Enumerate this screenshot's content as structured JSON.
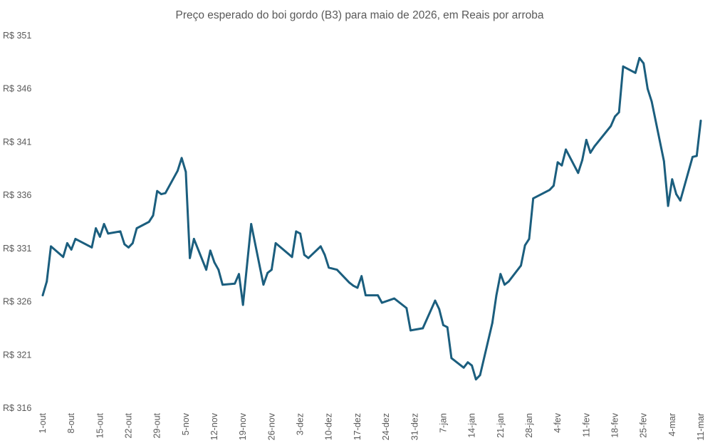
{
  "chart_data": {
    "type": "line",
    "title": "Preço esperado do boi gordo (B3) para maio de 2026, em Reais por arroba",
    "xlabel": "",
    "ylabel": "",
    "ylim": [
      316,
      351
    ],
    "xlim": [
      "2025-10-01",
      "2026-03-11"
    ],
    "grid": false,
    "line_color": "#1b5e7e",
    "y_ticks": [
      316,
      321,
      326,
      331,
      336,
      341,
      346,
      351
    ],
    "y_tick_labels": [
      "R$ 316",
      "R$ 321",
      "R$ 326",
      "R$ 331",
      "R$ 336",
      "R$ 341",
      "R$ 346",
      "R$ 351"
    ],
    "x_ticks": [
      "2025-10-01",
      "2025-10-08",
      "2025-10-15",
      "2025-10-22",
      "2025-10-29",
      "2025-11-05",
      "2025-11-12",
      "2025-11-19",
      "2025-11-26",
      "2025-12-03",
      "2025-12-10",
      "2025-12-17",
      "2025-12-24",
      "2025-12-31",
      "2026-01-07",
      "2026-01-14",
      "2026-01-21",
      "2026-01-28",
      "2026-02-04",
      "2026-02-11",
      "2026-02-18",
      "2026-02-25",
      "2026-03-04",
      "2026-03-11"
    ],
    "x_tick_labels": [
      "1-out",
      "8-out",
      "15-out",
      "22-out",
      "29-out",
      "5-nov",
      "12-nov",
      "19-nov",
      "26-nov",
      "3-dez",
      "10-dez",
      "17-dez",
      "24-dez",
      "31-dez",
      "7-jan",
      "14-jan",
      "21-jan",
      "28-jan",
      "4-fev",
      "11-fev",
      "18-fev",
      "25-fev",
      "4-mar",
      "11-mar"
    ],
    "series": [
      {
        "x": [
          "2025-10-01",
          "2025-10-02",
          "2025-10-03",
          "2025-10-06",
          "2025-10-07",
          "2025-10-08",
          "2025-10-09",
          "2025-10-13",
          "2025-10-14",
          "2025-10-15",
          "2025-10-16",
          "2025-10-17",
          "2025-10-20",
          "2025-10-21",
          "2025-10-22",
          "2025-10-23",
          "2025-10-24",
          "2025-10-27",
          "2025-10-28",
          "2025-10-29",
          "2025-10-30",
          "2025-10-31",
          "2025-11-03",
          "2025-11-04",
          "2025-11-05",
          "2025-11-06",
          "2025-11-07",
          "2025-11-10",
          "2025-11-11",
          "2025-11-12",
          "2025-11-13",
          "2025-11-14",
          "2025-11-17",
          "2025-11-18",
          "2025-11-19",
          "2025-11-21",
          "2025-11-24",
          "2025-11-25",
          "2025-11-26",
          "2025-11-27",
          "2025-12-01",
          "2025-12-02",
          "2025-12-03",
          "2025-12-04",
          "2025-12-05",
          "2025-12-08",
          "2025-12-09",
          "2025-12-10",
          "2025-12-12",
          "2025-12-15",
          "2025-12-16",
          "2025-12-17",
          "2025-12-18",
          "2025-12-19",
          "2025-12-22",
          "2025-12-23",
          "2025-12-26",
          "2025-12-29",
          "2025-12-30",
          "2026-01-02",
          "2026-01-05",
          "2026-01-06",
          "2026-01-07",
          "2026-01-08",
          "2026-01-09",
          "2026-01-12",
          "2026-01-13",
          "2026-01-14",
          "2026-01-15",
          "2026-01-16",
          "2026-01-19",
          "2026-01-20",
          "2026-01-21",
          "2026-01-22",
          "2026-01-23",
          "2026-01-26",
          "2026-01-27",
          "2026-01-28",
          "2026-01-29",
          "2026-02-02",
          "2026-02-03",
          "2026-02-04",
          "2026-02-05",
          "2026-02-06",
          "2026-02-09",
          "2026-02-10",
          "2026-02-11",
          "2026-02-12",
          "2026-02-13",
          "2026-02-17",
          "2026-02-18",
          "2026-02-19",
          "2026-02-20",
          "2026-02-23",
          "2026-02-24",
          "2026-02-25",
          "2026-02-26",
          "2026-02-27",
          "2026-03-02",
          "2026-03-03",
          "2026-03-04",
          "2026-03-05",
          "2026-03-06",
          "2026-03-09",
          "2026-03-10",
          "2026-03-11"
        ],
        "values": [
          326.6,
          327.9,
          331.2,
          330.2,
          331.5,
          330.9,
          331.9,
          331.1,
          332.9,
          332.1,
          333.3,
          332.4,
          332.6,
          331.4,
          331.1,
          331.5,
          332.9,
          333.5,
          334.1,
          336.4,
          336.1,
          336.2,
          338.3,
          339.5,
          338.2,
          330.1,
          331.9,
          329.0,
          330.8,
          329.7,
          329.0,
          327.6,
          327.7,
          328.6,
          325.7,
          333.3,
          327.6,
          328.7,
          329.0,
          331.5,
          330.2,
          332.6,
          332.4,
          330.4,
          330.1,
          331.2,
          330.4,
          329.2,
          329.0,
          327.8,
          327.5,
          327.3,
          328.4,
          326.6,
          326.6,
          325.9,
          326.3,
          325.4,
          323.3,
          323.5,
          326.1,
          325.3,
          323.8,
          323.6,
          320.7,
          319.8,
          320.3,
          320.0,
          318.7,
          319.1,
          324.0,
          326.6,
          328.6,
          327.6,
          327.9,
          329.4,
          331.3,
          331.9,
          335.7,
          336.5,
          336.9,
          339.1,
          338.8,
          340.3,
          338.1,
          339.3,
          341.2,
          340.0,
          340.6,
          342.5,
          343.4,
          343.8,
          348.1,
          347.5,
          348.9,
          348.4,
          346.0,
          344.8,
          339.2,
          335.0,
          337.5,
          336.1,
          335.5,
          339.6,
          339.7,
          343.0
        ]
      }
    ]
  }
}
